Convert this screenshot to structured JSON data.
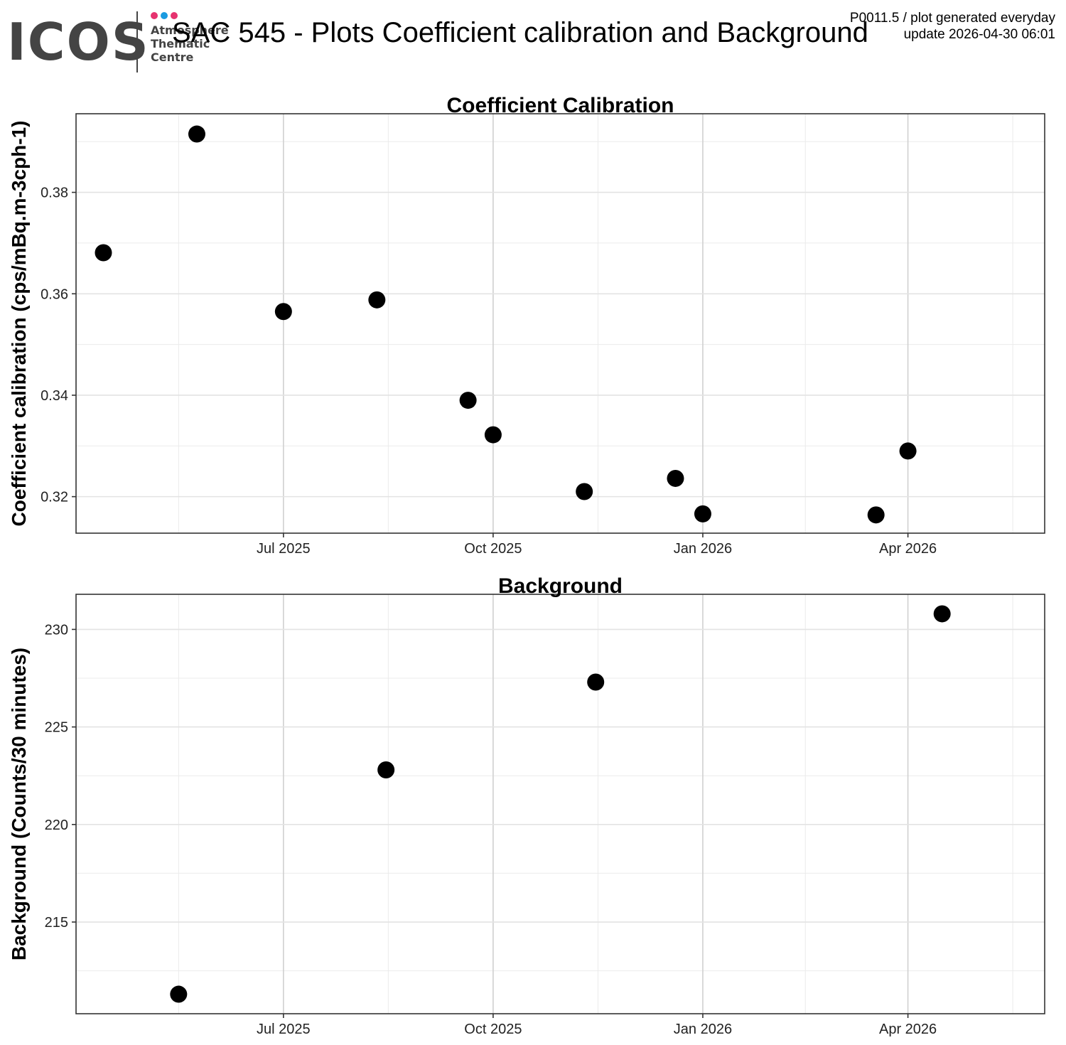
{
  "header": {
    "logo": {
      "text": "ICOS",
      "line1": "Atmosphere",
      "line2": "Thematic",
      "line3": "Centre",
      "dot_colors": [
        "#e6336f",
        "#1a9be0",
        "#e6336f"
      ]
    },
    "title": "SAC 545 - Plots Coefficient calibration and Background",
    "note_line1": "P0011.5 / plot generated everyday",
    "note_line2": "update  2026-04-30 06:01"
  },
  "chart_data": [
    {
      "type": "scatter",
      "title": "Coefficient Calibration",
      "xlabel": "",
      "ylabel": "Coefficient calibration (cps/mBq.m-3cph-1)",
      "x": [
        "2025-04-13",
        "2025-05-24",
        "2025-07-01",
        "2025-08-11",
        "2025-09-20",
        "2025-10-01",
        "2025-11-10",
        "2025-12-20",
        "2026-01-01",
        "2026-03-18",
        "2026-04-01"
      ],
      "y": [
        0.3681,
        0.3915,
        0.3565,
        0.3588,
        0.339,
        0.3322,
        0.321,
        0.3236,
        0.3166,
        0.3164,
        0.329
      ],
      "xlim": [
        "2025-04-01",
        "2026-05-31"
      ],
      "ylim": [
        0.3128,
        0.3955
      ],
      "yticks": [
        0.32,
        0.34,
        0.36,
        0.38
      ],
      "ytick_labels": [
        "0.32",
        "0.34",
        "0.36",
        "0.38"
      ],
      "xticks": [
        "2025-07-01",
        "2025-10-01",
        "2026-01-01",
        "2026-04-01"
      ],
      "xtick_labels": [
        "Jul 2025",
        "Oct 2025",
        "Jan 2026",
        "Apr 2026"
      ],
      "grid": true,
      "marker_color": "#000000"
    },
    {
      "type": "scatter",
      "title": "Background",
      "xlabel": "",
      "ylabel": "Background (Counts/30 minutes)",
      "x": [
        "2025-05-16",
        "2025-08-15",
        "2025-11-15",
        "2026-04-16"
      ],
      "y": [
        211.3,
        222.8,
        227.3,
        230.8
      ],
      "xlim": [
        "2025-04-01",
        "2026-05-31"
      ],
      "ylim": [
        210.3,
        231.8
      ],
      "yticks": [
        215,
        220,
        225,
        230
      ],
      "ytick_labels": [
        "215",
        "220",
        "225",
        "230"
      ],
      "xticks": [
        "2025-07-01",
        "2025-10-01",
        "2026-01-01",
        "2026-04-01"
      ],
      "xtick_labels": [
        "Jul 2025",
        "Oct 2025",
        "Jan 2026",
        "Apr 2026"
      ],
      "grid": true,
      "marker_color": "#000000"
    }
  ]
}
